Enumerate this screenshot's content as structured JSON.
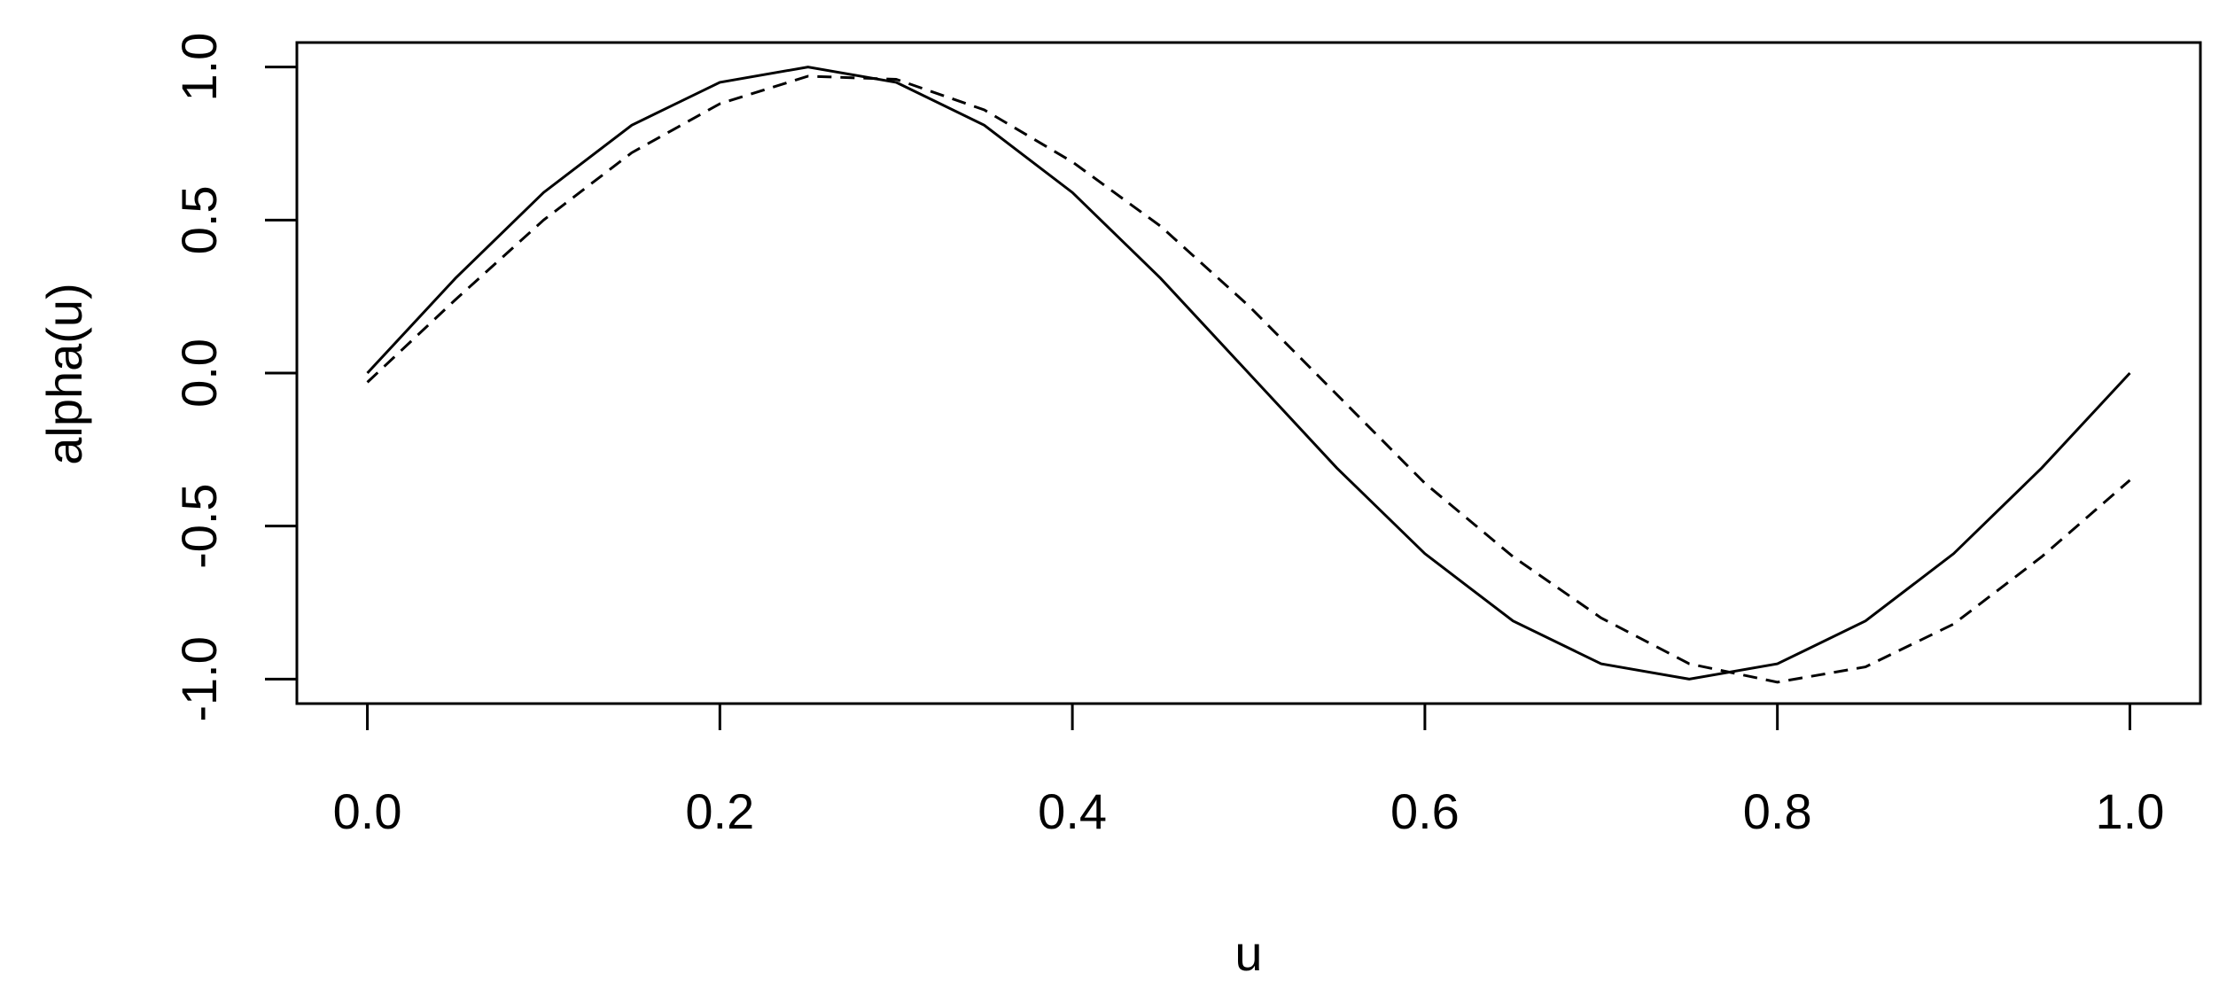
{
  "chart_data": {
    "type": "line",
    "x_label": "u",
    "y_label": "alpha(u)",
    "x": [
      0,
      0.05,
      0.1,
      0.15,
      0.2,
      0.25,
      0.3,
      0.35,
      0.4,
      0.45,
      0.5,
      0.55,
      0.6,
      0.65,
      0.7,
      0.75,
      0.8,
      0.85,
      0.9,
      0.95,
      1.0
    ],
    "series": [
      {
        "color": "#000000",
        "line_style": "solid",
        "values": [
          0,
          0.31,
          0.59,
          0.81,
          0.95,
          1.0,
          0.95,
          0.81,
          0.59,
          0.31,
          0,
          -0.31,
          -0.59,
          -0.81,
          -0.95,
          -1.0,
          -0.95,
          -0.81,
          -0.59,
          -0.31,
          0
        ]
      },
      {
        "color": "#000000",
        "line_style": "dashed",
        "values": [
          -0.03,
          0.24,
          0.5,
          0.72,
          0.88,
          0.97,
          0.96,
          0.86,
          0.69,
          0.48,
          0.22,
          -0.07,
          -0.36,
          -0.6,
          -0.8,
          -0.95,
          -1.01,
          -0.96,
          -0.82,
          -0.6,
          -0.35
        ]
      }
    ],
    "xlim": [
      -0.04,
      1.04
    ],
    "ylim": [
      -1.08,
      1.08
    ],
    "xticks": [
      {
        "value": 0,
        "label": "0.0"
      },
      0.2,
      0.4,
      0.6,
      0.8,
      {
        "value": 1,
        "label": "1.0"
      }
    ],
    "yticks": [
      {
        "value": -1,
        "label": "-1.0"
      },
      -0.5,
      {
        "value": 0,
        "label": "0.0"
      },
      0.5,
      {
        "value": 1,
        "label": "1.0"
      }
    ],
    "grid": false
  }
}
